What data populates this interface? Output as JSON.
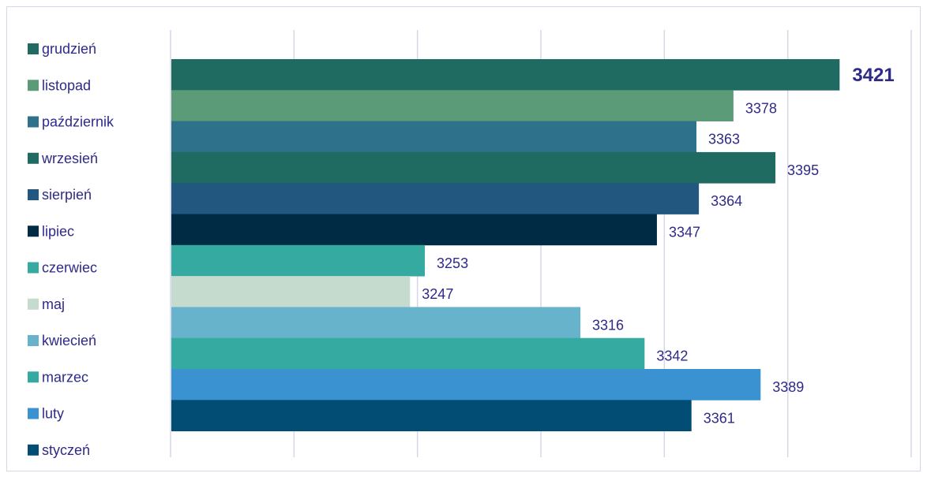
{
  "chart_data": {
    "type": "bar",
    "orientation": "horizontal",
    "legend_categories": [
      "grudzień",
      "listopad",
      "październik",
      "wrzesień",
      "sierpień",
      "lipiec",
      "czerwiec",
      "maj",
      "kwiecień",
      "marzec",
      "luty",
      "styczeń"
    ],
    "legend_colors": [
      "#1f6b62",
      "#5b9b78",
      "#2e718a",
      "#1f6b62",
      "#22587f",
      "#002b45",
      "#34aaa0",
      "#c4dbce",
      "#67b3cb",
      "#34aaa0",
      "#3a92d0",
      "#024d73"
    ],
    "bars": [
      {
        "label": "3421",
        "value": 3421,
        "color": "#1f6b62",
        "bold": true
      },
      {
        "label": "3378",
        "value": 3378,
        "color": "#5b9b78"
      },
      {
        "label": "3363",
        "value": 3363,
        "color": "#2e718a"
      },
      {
        "label": "3395",
        "value": 3395,
        "color": "#1f6b62"
      },
      {
        "label": "3364",
        "value": 3364,
        "color": "#22587f"
      },
      {
        "label": "3347",
        "value": 3347,
        "color": "#002b45"
      },
      {
        "label": "3253",
        "value": 3253,
        "color": "#34aaa0"
      },
      {
        "label": "3247",
        "value": 3247,
        "color": "#c4dbce"
      },
      {
        "label": "3316",
        "value": 3316,
        "color": "#67b3cb"
      },
      {
        "label": "3342",
        "value": 3342,
        "color": "#34aaa0"
      },
      {
        "label": "3389",
        "value": 3389,
        "color": "#3a92d0"
      },
      {
        "label": "3361",
        "value": 3361,
        "color": "#024d73"
      }
    ],
    "xlim": [
      3150,
      3450
    ],
    "x_gridlines": [
      3150,
      3200,
      3250,
      3300,
      3350,
      3400,
      3450
    ],
    "grid": true,
    "legend_position": "left",
    "title": "",
    "xlabel": "",
    "ylabel": ""
  }
}
